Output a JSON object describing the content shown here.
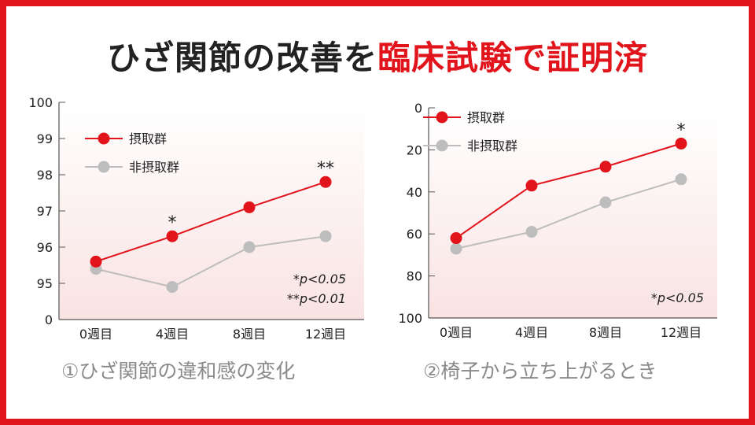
{
  "title": {
    "part1": "ひざ関節の改善を",
    "part2": "臨床試験で証明済"
  },
  "colors": {
    "accent": "#e1141c",
    "gray": "#bdbdbd",
    "text": "#222222"
  },
  "chart_data": [
    {
      "type": "line",
      "caption": "①ひざ関節の違和感の変化",
      "categories": [
        "0週目",
        "4週目",
        "8週目",
        "12週目"
      ],
      "series": [
        {
          "name": "摂取群",
          "color": "#e1141c",
          "values": [
            95.6,
            96.3,
            97.1,
            97.8
          ]
        },
        {
          "name": "非摂取群",
          "color": "#bdbdbd",
          "values": [
            95.4,
            94.9,
            96.0,
            96.3
          ]
        }
      ],
      "yticks": [
        "100",
        "99",
        "98",
        "97",
        "96",
        "95",
        "0"
      ],
      "ylim": [
        95,
        100
      ],
      "axis_break": true,
      "inverted": false,
      "significance": [
        "",
        "*",
        "",
        "**"
      ],
      "notes": [
        "*p<0.05",
        "**p<0.01"
      ],
      "legend": "top-left"
    },
    {
      "type": "line",
      "caption": "②椅子から立ち上がるとき",
      "categories": [
        "0週目",
        "4週目",
        "8週目",
        "12週目"
      ],
      "series": [
        {
          "name": "摂取群",
          "color": "#e1141c",
          "values": [
            62,
            37,
            28,
            17
          ]
        },
        {
          "name": "非摂取群",
          "color": "#bdbdbd",
          "values": [
            67,
            59,
            45,
            34
          ]
        }
      ],
      "yticks": [
        "0",
        "20",
        "40",
        "60",
        "80",
        "100"
      ],
      "ylim": [
        0,
        100
      ],
      "axis_break": false,
      "inverted": true,
      "significance": [
        "",
        "",
        "",
        "*"
      ],
      "notes": [
        "*p<0.05"
      ],
      "legend": "top-left"
    }
  ]
}
